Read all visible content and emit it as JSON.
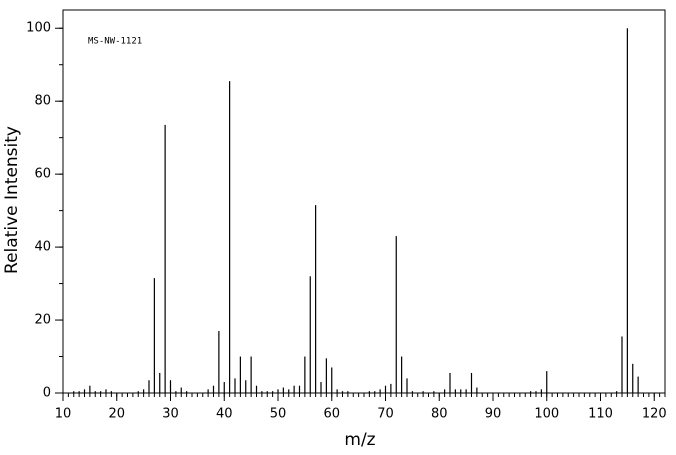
{
  "chart_data": {
    "type": "stem",
    "annotation": "MS-NW-1121",
    "xlabel": "m/z",
    "ylabel": "Relative Intensity",
    "color": "#000000",
    "xlim": [
      10,
      122
    ],
    "ylim": [
      0,
      105
    ],
    "xticks": [
      10,
      20,
      30,
      40,
      50,
      60,
      70,
      80,
      90,
      100,
      110,
      120
    ],
    "yticks": [
      0,
      20,
      40,
      60,
      80,
      100
    ],
    "xminor": 1,
    "yminor": 10,
    "x": [
      12,
      13,
      14,
      15,
      16,
      17,
      18,
      19,
      24,
      25,
      26,
      27,
      28,
      29,
      30,
      31,
      32,
      33,
      37,
      38,
      39,
      40,
      41,
      42,
      43,
      44,
      45,
      46,
      47,
      48,
      49,
      50,
      51,
      52,
      53,
      54,
      55,
      56,
      57,
      58,
      59,
      60,
      61,
      62,
      63,
      67,
      68,
      69,
      70,
      71,
      72,
      73,
      74,
      75,
      77,
      79,
      81,
      82,
      83,
      84,
      85,
      86,
      87,
      97,
      98,
      99,
      100,
      113,
      114,
      115,
      116,
      117
    ],
    "values": [
      0.5,
      0.5,
      1,
      2,
      0.5,
      0.5,
      1,
      0.5,
      0.5,
      1,
      3.5,
      31.5,
      5.5,
      73.5,
      3.5,
      0.5,
      1.5,
      0.5,
      1,
      2,
      17,
      3,
      85.5,
      4,
      10,
      3.5,
      10,
      2,
      0.5,
      0.5,
      0.5,
      1,
      1.5,
      1,
      2,
      2,
      10,
      32,
      51.5,
      3,
      9.5,
      7,
      1,
      0.5,
      0.5,
      0.5,
      0.5,
      1,
      2,
      2.5,
      43,
      10,
      4,
      0.5,
      0.5,
      0.5,
      1,
      5.5,
      1,
      1,
      1,
      5.5,
      1.5,
      0.5,
      0.5,
      1,
      6,
      0.5,
      15.5,
      100,
      8,
      4.5
    ]
  }
}
